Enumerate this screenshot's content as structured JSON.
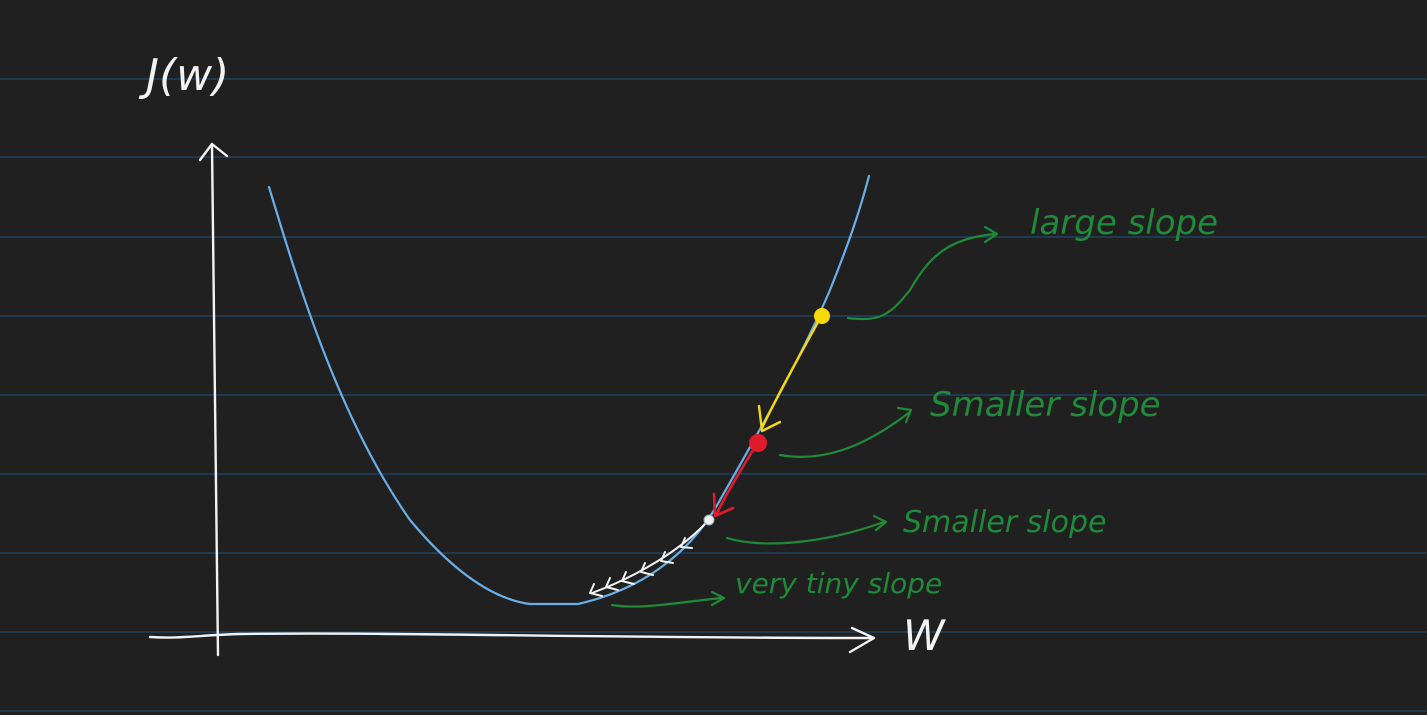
{
  "axes": {
    "y_label": "J(w)",
    "x_label": "W"
  },
  "annotations": [
    {
      "id": "large",
      "text": "large slope"
    },
    {
      "id": "smaller1",
      "text": "Smaller slope"
    },
    {
      "id": "smaller2",
      "text": "Smaller slope"
    },
    {
      "id": "tiny",
      "text": "very tiny slope"
    }
  ],
  "colors": {
    "background": "#202020",
    "rule_lines": "#1f4a6e",
    "curve": "#6aaee8",
    "axis": "#f2f2f2",
    "annotation": "#1f8a3a",
    "point_yellow": "#f5d90a",
    "point_red": "#e01b2b",
    "point_white": "#f2f2f2"
  },
  "points": [
    {
      "id": "yellow-point",
      "color_key": "point_yellow"
    },
    {
      "id": "red-point",
      "color_key": "point_red"
    },
    {
      "id": "white-point",
      "color_key": "point_white"
    }
  ]
}
